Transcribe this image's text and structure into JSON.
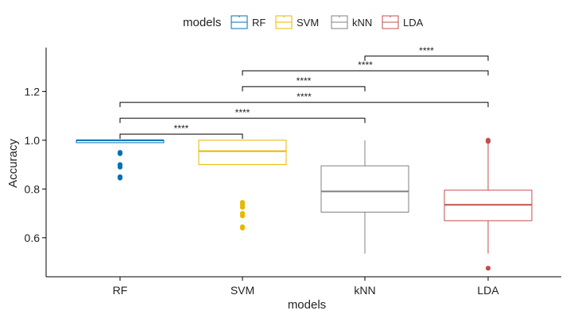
{
  "chart_data": {
    "type": "boxplot",
    "title": "",
    "xlabel": "models",
    "ylabel": "Accuracy",
    "ylim": [
      0.44,
      1.38
    ],
    "yticks": [
      "0.6",
      "0.8",
      "1.0",
      "1.2"
    ],
    "ytick_values": [
      0.6,
      0.8,
      1.0,
      1.2
    ],
    "categories": [
      "RF",
      "SVM",
      "kNN",
      "LDA"
    ],
    "grid": false,
    "legend": {
      "title": "models",
      "position": "top",
      "entries": [
        "RF",
        "SVM",
        "kNN",
        "LDA"
      ]
    },
    "series": [
      {
        "name": "RF",
        "color": "#0072B2",
        "whisker_low": 0.99,
        "q1": 0.99,
        "median": 1.0,
        "q3": 1.0,
        "whisker_high": 1.0,
        "outliers": [
          0.85,
          0.845,
          0.89,
          0.9,
          0.945,
          0.95
        ]
      },
      {
        "name": "SVM",
        "color": "#E7B800",
        "whisker_low": 0.9,
        "q1": 0.9,
        "median": 0.955,
        "q3": 1.0,
        "whisker_high": 1.0,
        "outliers": [
          0.64,
          0.645,
          0.69,
          0.7,
          0.725,
          0.735,
          0.745
        ]
      },
      {
        "name": "kNN",
        "color": "#808080",
        "whisker_low": 0.535,
        "q1": 0.705,
        "median": 0.79,
        "q3": 0.895,
        "whisker_high": 1.0,
        "outliers": []
      },
      {
        "name": "LDA",
        "color": "#C0504D",
        "whisker_low": 0.535,
        "q1": 0.67,
        "median": 0.735,
        "q3": 0.795,
        "whisker_high": 0.995,
        "outliers": [
          0.475,
          0.995,
          1.0
        ]
      }
    ],
    "annotations": [
      {
        "from": "RF",
        "to": "SVM",
        "label": "****",
        "y": 1.025
      },
      {
        "from": "RF",
        "to": "kNN",
        "label": "****",
        "y": 1.09
      },
      {
        "from": "RF",
        "to": "LDA",
        "label": "****",
        "y": 1.155
      },
      {
        "from": "SVM",
        "to": "kNN",
        "label": "****",
        "y": 1.22
      },
      {
        "from": "SVM",
        "to": "LDA",
        "label": "****",
        "y": 1.285
      },
      {
        "from": "kNN",
        "to": "LDA",
        "label": "****",
        "y": 1.345
      }
    ]
  }
}
